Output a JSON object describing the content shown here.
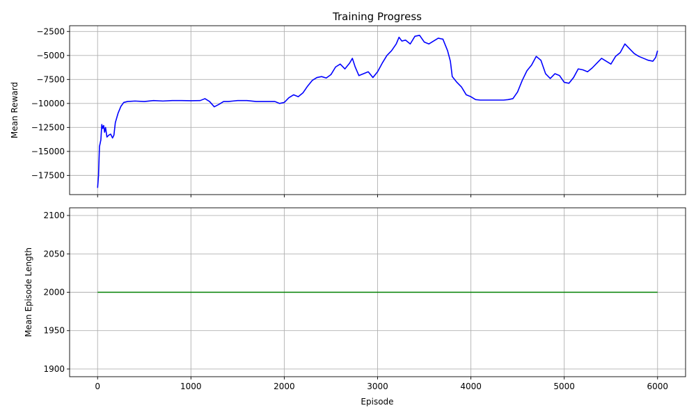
{
  "chart_data": [
    {
      "type": "line",
      "title": "Training Progress",
      "xlabel": "",
      "ylabel": "Mean Reward",
      "xlim": [
        -300,
        6300
      ],
      "ylim": [
        -19500,
        -1900
      ],
      "xticks": [
        0,
        1000,
        2000,
        3000,
        4000,
        5000,
        6000
      ],
      "xtick_labels_visible": false,
      "yticks": [
        -17500,
        -15000,
        -12500,
        -10000,
        -7500,
        -5000,
        -2500
      ],
      "grid": true,
      "series": [
        {
          "color": "#0000ff",
          "points": [
            [
              0,
              -18800
            ],
            [
              10,
              -17500
            ],
            [
              20,
              -14500
            ],
            [
              35,
              -13800
            ],
            [
              45,
              -12200
            ],
            [
              55,
              -12600
            ],
            [
              65,
              -12300
            ],
            [
              75,
              -13000
            ],
            [
              85,
              -12500
            ],
            [
              100,
              -13500
            ],
            [
              120,
              -13300
            ],
            [
              140,
              -13200
            ],
            [
              160,
              -13600
            ],
            [
              175,
              -13300
            ],
            [
              190,
              -12000
            ],
            [
              220,
              -11000
            ],
            [
              250,
              -10300
            ],
            [
              280,
              -9900
            ],
            [
              320,
              -9800
            ],
            [
              400,
              -9750
            ],
            [
              500,
              -9800
            ],
            [
              600,
              -9700
            ],
            [
              700,
              -9750
            ],
            [
              800,
              -9700
            ],
            [
              900,
              -9700
            ],
            [
              1000,
              -9720
            ],
            [
              1100,
              -9700
            ],
            [
              1150,
              -9500
            ],
            [
              1200,
              -9800
            ],
            [
              1250,
              -10350
            ],
            [
              1300,
              -10100
            ],
            [
              1350,
              -9800
            ],
            [
              1400,
              -9800
            ],
            [
              1450,
              -9750
            ],
            [
              1500,
              -9700
            ],
            [
              1600,
              -9700
            ],
            [
              1700,
              -9800
            ],
            [
              1800,
              -9800
            ],
            [
              1900,
              -9800
            ],
            [
              1950,
              -10000
            ],
            [
              2000,
              -9900
            ],
            [
              2050,
              -9400
            ],
            [
              2100,
              -9100
            ],
            [
              2150,
              -9300
            ],
            [
              2200,
              -8900
            ],
            [
              2250,
              -8200
            ],
            [
              2300,
              -7600
            ],
            [
              2350,
              -7300
            ],
            [
              2400,
              -7200
            ],
            [
              2450,
              -7350
            ],
            [
              2500,
              -7000
            ],
            [
              2550,
              -6200
            ],
            [
              2600,
              -5900
            ],
            [
              2650,
              -6400
            ],
            [
              2700,
              -5800
            ],
            [
              2730,
              -5300
            ],
            [
              2760,
              -6200
            ],
            [
              2800,
              -7100
            ],
            [
              2850,
              -6900
            ],
            [
              2900,
              -6700
            ],
            [
              2950,
              -7300
            ],
            [
              3000,
              -6700
            ],
            [
              3050,
              -5800
            ],
            [
              3100,
              -5000
            ],
            [
              3150,
              -4500
            ],
            [
              3200,
              -3800
            ],
            [
              3230,
              -3100
            ],
            [
              3260,
              -3500
            ],
            [
              3300,
              -3400
            ],
            [
              3350,
              -3800
            ],
            [
              3400,
              -3000
            ],
            [
              3450,
              -2900
            ],
            [
              3500,
              -3600
            ],
            [
              3550,
              -3800
            ],
            [
              3600,
              -3500
            ],
            [
              3650,
              -3200
            ],
            [
              3700,
              -3300
            ],
            [
              3750,
              -4500
            ],
            [
              3780,
              -5600
            ],
            [
              3800,
              -7200
            ],
            [
              3850,
              -7800
            ],
            [
              3900,
              -8300
            ],
            [
              3950,
              -9100
            ],
            [
              4000,
              -9300
            ],
            [
              4050,
              -9600
            ],
            [
              4100,
              -9650
            ],
            [
              4200,
              -9650
            ],
            [
              4300,
              -9650
            ],
            [
              4350,
              -9650
            ],
            [
              4400,
              -9600
            ],
            [
              4450,
              -9500
            ],
            [
              4500,
              -8800
            ],
            [
              4550,
              -7600
            ],
            [
              4600,
              -6600
            ],
            [
              4650,
              -6000
            ],
            [
              4700,
              -5100
            ],
            [
              4750,
              -5500
            ],
            [
              4800,
              -6900
            ],
            [
              4850,
              -7400
            ],
            [
              4900,
              -6900
            ],
            [
              4950,
              -7100
            ],
            [
              5000,
              -7800
            ],
            [
              5050,
              -7900
            ],
            [
              5100,
              -7300
            ],
            [
              5150,
              -6400
            ],
            [
              5200,
              -6500
            ],
            [
              5250,
              -6700
            ],
            [
              5300,
              -6300
            ],
            [
              5350,
              -5800
            ],
            [
              5400,
              -5300
            ],
            [
              5450,
              -5600
            ],
            [
              5500,
              -5900
            ],
            [
              5550,
              -5100
            ],
            [
              5600,
              -4700
            ],
            [
              5650,
              -3800
            ],
            [
              5700,
              -4300
            ],
            [
              5750,
              -4800
            ],
            [
              5800,
              -5100
            ],
            [
              5850,
              -5300
            ],
            [
              5900,
              -5500
            ],
            [
              5950,
              -5600
            ],
            [
              5980,
              -5200
            ],
            [
              6000,
              -4500
            ]
          ]
        }
      ]
    },
    {
      "type": "line",
      "title": "",
      "xlabel": "Episode",
      "ylabel": "Mean Episode Length",
      "xlim": [
        -300,
        6300
      ],
      "ylim": [
        1890,
        2110
      ],
      "xticks": [
        0,
        1000,
        2000,
        3000,
        4000,
        5000,
        6000
      ],
      "yticks": [
        1900,
        1950,
        2000,
        2050,
        2100
      ],
      "grid": true,
      "series": [
        {
          "color": "#008000",
          "points": [
            [
              0,
              2000
            ],
            [
              6000,
              2000
            ]
          ]
        }
      ]
    }
  ]
}
